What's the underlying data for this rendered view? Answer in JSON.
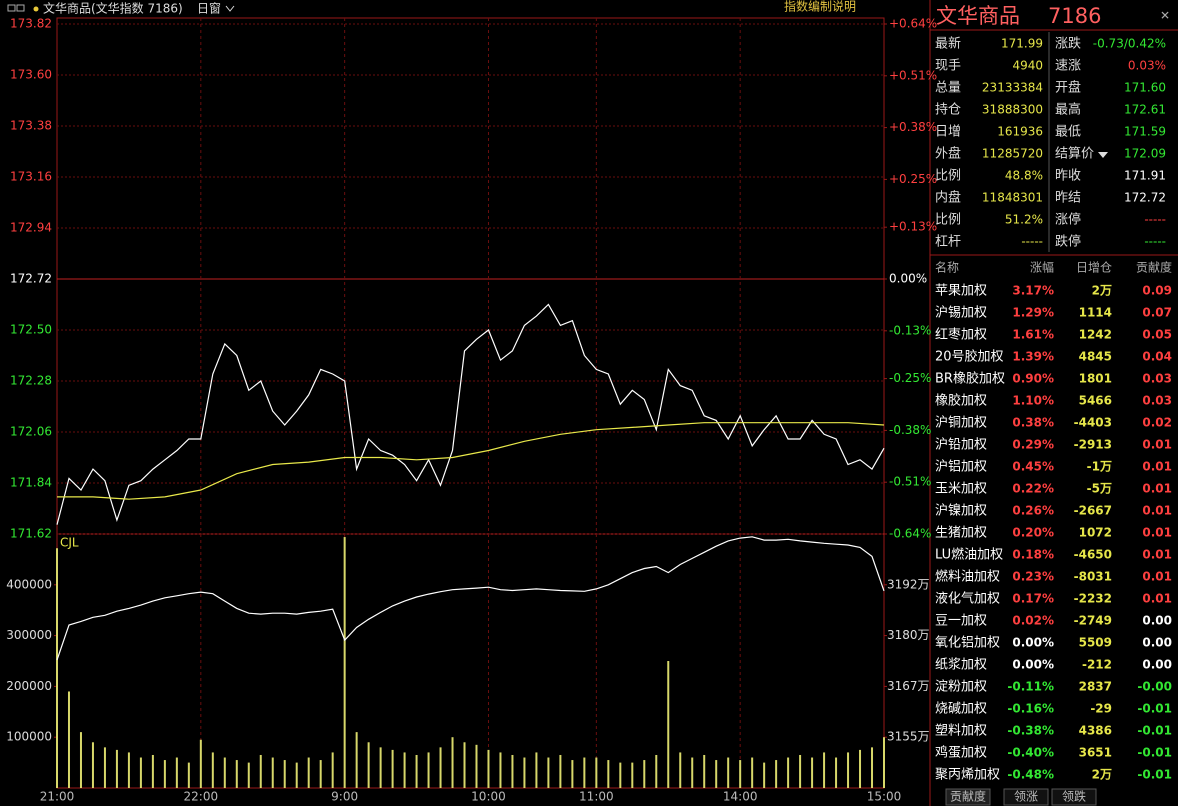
{
  "toolbar": {
    "symbol": "文华商品(文华指数 7186)",
    "period": "日窗",
    "help": "指数编制说明"
  },
  "chart_data": [
    {
      "type": "line",
      "x": [
        0,
        5,
        10,
        15,
        20,
        25,
        30,
        35,
        40,
        45,
        50,
        55,
        60,
        65,
        70,
        75,
        80,
        85,
        90,
        95,
        100,
        105,
        110,
        115,
        120,
        125,
        130,
        135,
        140,
        145,
        150,
        155,
        160,
        165,
        170,
        175,
        180,
        185,
        190,
        195,
        200,
        205,
        210,
        215,
        220,
        225,
        230,
        235,
        240,
        245,
        250,
        255,
        260,
        265,
        270,
        275,
        280,
        285,
        290,
        295,
        300,
        305,
        310,
        315,
        320,
        325,
        330,
        335,
        340,
        345
      ],
      "xlim": [
        0,
        345
      ],
      "ylim": [
        171.62,
        173.82
      ],
      "yticks": [
        171.62,
        171.84,
        172.06,
        172.28,
        {
          "value": 172.5,
          "label": "172.50"
        },
        172.72,
        172.94,
        173.16,
        173.38,
        {
          "value": 173.6,
          "label": "173.60"
        },
        173.82
      ],
      "y2lim": [
        -0.64,
        0.64
      ],
      "y2ticks": [
        {
          "value": -0.64,
          "label": "-0.64%"
        },
        {
          "value": -0.51,
          "label": "-0.51%"
        },
        {
          "value": -0.38,
          "label": "-0.38%"
        },
        {
          "value": -0.25,
          "label": "-0.25%"
        },
        {
          "value": -0.13,
          "label": "-0.13%"
        },
        {
          "value": 0,
          "label": "0.00%"
        },
        {
          "value": 0.13,
          "label": "+0.13%"
        },
        {
          "value": 0.25,
          "label": "+0.25%"
        },
        {
          "value": 0.38,
          "label": "+0.38%"
        },
        {
          "value": 0.51,
          "label": "+0.51%"
        },
        {
          "value": 0.64,
          "label": "+0.64%"
        }
      ],
      "grid": true,
      "series": [
        {
          "color": "#ffffff",
          "values": [
            171.66,
            171.86,
            171.81,
            171.9,
            171.85,
            171.68,
            171.83,
            171.85,
            171.9,
            171.94,
            171.98,
            172.03,
            172.03,
            172.31,
            172.44,
            172.39,
            172.24,
            172.28,
            172.15,
            172.09,
            172.15,
            172.22,
            172.33,
            172.31,
            172.28,
            171.9,
            172.03,
            171.98,
            171.96,
            171.92,
            171.85,
            171.94,
            171.83,
            171.98,
            172.41,
            172.46,
            172.5,
            172.37,
            172.41,
            172.52,
            172.56,
            172.61,
            172.52,
            172.54,
            172.39,
            172.33,
            172.31,
            172.18,
            172.24,
            172.2,
            172.07,
            172.33,
            172.26,
            172.24,
            172.13,
            172.11,
            172.03,
            172.13,
            172.0,
            172.07,
            172.13,
            172.03,
            172.03,
            172.11,
            172.05,
            172.03,
            171.92,
            171.94,
            171.9,
            171.99
          ]
        },
        {
          "color": "#e8e84a",
          "x": [
            0,
            15,
            30,
            45,
            60,
            75,
            90,
            105,
            120,
            135,
            150,
            165,
            180,
            195,
            210,
            225,
            240,
            255,
            270,
            285,
            300,
            315,
            330,
            345
          ],
          "values": [
            171.78,
            171.78,
            171.77,
            171.78,
            171.81,
            171.88,
            171.92,
            171.93,
            171.95,
            171.95,
            171.94,
            171.95,
            171.98,
            172.02,
            172.05,
            172.07,
            172.08,
            172.09,
            172.1,
            172.1,
            172.1,
            172.1,
            172.1,
            172.09
          ]
        }
      ]
    },
    {
      "type": "bar",
      "title": "CJL",
      "x": [
        0,
        5,
        10,
        15,
        20,
        25,
        30,
        35,
        40,
        45,
        50,
        55,
        60,
        65,
        70,
        75,
        80,
        85,
        90,
        95,
        100,
        105,
        110,
        115,
        120,
        125,
        130,
        135,
        140,
        145,
        150,
        155,
        160,
        165,
        170,
        175,
        180,
        185,
        190,
        195,
        200,
        205,
        210,
        215,
        220,
        225,
        230,
        235,
        240,
        245,
        250,
        255,
        260,
        265,
        270,
        275,
        280,
        285,
        290,
        295,
        300,
        305,
        310,
        315,
        320,
        325,
        330,
        335,
        340,
        345
      ],
      "xlim": [
        0,
        345
      ],
      "xticks": [
        {
          "value": 0,
          "label": "21:00"
        },
        {
          "value": 60,
          "label": "22:00"
        },
        {
          "value": 120,
          "label": "9:00"
        },
        {
          "value": 180,
          "label": "10:00"
        },
        {
          "value": 225,
          "label": "11:00"
        },
        {
          "value": 285,
          "label": "14:00"
        },
        {
          "value": 345,
          "label": "15:00"
        }
      ],
      "ylim": [
        0,
        500000
      ],
      "yticks": [
        100000,
        200000,
        300000,
        400000
      ],
      "y2lim": [
        31420000,
        32045000
      ],
      "y2ticks": [
        {
          "value": 31545000,
          "label": "3155万"
        },
        {
          "value": 31670000,
          "label": "3167万"
        },
        {
          "value": 31795000,
          "label": "3180万"
        },
        {
          "value": 31920000,
          "label": "3192万"
        }
      ],
      "series": [
        {
          "type": "bar",
          "color": "#d8d86a",
          "values": [
            472000,
            190000,
            110000,
            90000,
            80000,
            75000,
            70000,
            60000,
            65000,
            55000,
            60000,
            50000,
            95000,
            70000,
            60000,
            55000,
            50000,
            65000,
            60000,
            55000,
            50000,
            60000,
            55000,
            70000,
            494000,
            110000,
            90000,
            80000,
            75000,
            70000,
            65000,
            70000,
            80000,
            100000,
            90000,
            85000,
            75000,
            70000,
            65000,
            60000,
            70000,
            60000,
            65000,
            55000,
            60000,
            60000,
            55000,
            50000,
            50000,
            55000,
            65000,
            250000,
            70000,
            60000,
            65000,
            55000,
            60000,
            55000,
            60000,
            50000,
            55000,
            60000,
            65000,
            60000,
            70000,
            60000,
            70000,
            75000,
            80000,
            100000
          ]
        },
        {
          "type": "line",
          "axis": "y2",
          "color": "#ffffff",
          "values": [
            31735000,
            31821000,
            31830000,
            31840000,
            31845000,
            31855000,
            31862000,
            31870000,
            31880000,
            31888000,
            31893000,
            31898000,
            31902000,
            31898000,
            31880000,
            31862000,
            31850000,
            31848000,
            31850000,
            31850000,
            31848000,
            31852000,
            31855000,
            31860000,
            31784000,
            31815000,
            31835000,
            31852000,
            31868000,
            31880000,
            31890000,
            31897000,
            31903000,
            31908000,
            31910000,
            31912000,
            31914000,
            31908000,
            31906000,
            31908000,
            31910000,
            31908000,
            31906000,
            31905000,
            31904000,
            31910000,
            31920000,
            31935000,
            31950000,
            31960000,
            31965000,
            31950000,
            31970000,
            31985000,
            32000000,
            32015000,
            32028000,
            32035000,
            32038000,
            32030000,
            32030000,
            32032000,
            32028000,
            32025000,
            32022000,
            32020000,
            32018000,
            32012000,
            31990000,
            31905000
          ]
        }
      ]
    }
  ],
  "quote": {
    "title": "文华商品",
    "code": "7186",
    "rows": [
      [
        {
          "label": "最新",
          "value": "171.99",
          "color": "#e6e64a"
        },
        {
          "label": "涨跌",
          "value": "-0.73/0.42%",
          "color": "#33e833"
        }
      ],
      [
        {
          "label": "现手",
          "value": "4940",
          "color": "#e6e64a"
        },
        {
          "label": "速涨",
          "value": "0.03%",
          "color": "#ff4040"
        }
      ],
      [
        {
          "label": "总量",
          "value": "23133384",
          "color": "#e6e64a"
        },
        {
          "label": "开盘",
          "value": "171.60",
          "color": "#33e833"
        }
      ],
      [
        {
          "label": "持仓",
          "value": "31888300",
          "color": "#e6e64a"
        },
        {
          "label": "最高",
          "value": "172.61",
          "color": "#33e833"
        }
      ],
      [
        {
          "label": "日增",
          "value": "161936",
          "color": "#e6e64a"
        },
        {
          "label": "最低",
          "value": "171.59",
          "color": "#33e833"
        }
      ],
      [
        {
          "label": "外盘",
          "value": "11285720",
          "color": "#e6e64a"
        },
        {
          "label": "结算价",
          "value": "172.09",
          "color": "#33e833"
        }
      ],
      [
        {
          "label": "比例",
          "value": "48.8%",
          "color": "#e6e64a"
        },
        {
          "label": "昨收",
          "value": "171.91",
          "color": "#ffffff"
        }
      ],
      [
        {
          "label": "内盘",
          "value": "11848301",
          "color": "#e6e64a"
        },
        {
          "label": "昨结",
          "value": "172.72",
          "color": "#ffffff"
        }
      ],
      [
        {
          "label": "比例",
          "value": "51.2%",
          "color": "#e6e64a"
        },
        {
          "label": "涨停",
          "value": "-----",
          "color": "#ff4040"
        }
      ],
      [
        {
          "label": "杠杆",
          "value": "-----",
          "color": "#e6e64a"
        },
        {
          "label": "跌停",
          "value": "-----",
          "color": "#33e833"
        }
      ]
    ]
  },
  "contrib": {
    "header": [
      "名称",
      "涨幅",
      "日增仓",
      "贡献度"
    ],
    "rows": [
      [
        "苹果加权",
        "3.17%",
        "2万",
        "0.09"
      ],
      [
        "沪锡加权",
        "1.29%",
        "1114",
        "0.07"
      ],
      [
        "红枣加权",
        "1.61%",
        "1242",
        "0.05"
      ],
      [
        "20号胶加权",
        "1.39%",
        "4845",
        "0.04"
      ],
      [
        "BR橡胶加权",
        "0.90%",
        "1801",
        "0.03"
      ],
      [
        "橡胶加权",
        "1.10%",
        "5466",
        "0.03"
      ],
      [
        "沪铜加权",
        "0.38%",
        "-4403",
        "0.02"
      ],
      [
        "沪铅加权",
        "0.29%",
        "-2913",
        "0.01"
      ],
      [
        "沪铝加权",
        "0.45%",
        "-1万",
        "0.01"
      ],
      [
        "玉米加权",
        "0.22%",
        "-5万",
        "0.01"
      ],
      [
        "沪镍加权",
        "0.26%",
        "-2667",
        "0.01"
      ],
      [
        "生猪加权",
        "0.20%",
        "1072",
        "0.01"
      ],
      [
        "LU燃油加权",
        "0.18%",
        "-4650",
        "0.01"
      ],
      [
        "燃料油加权",
        "0.23%",
        "-8031",
        "0.01"
      ],
      [
        "液化气加权",
        "0.17%",
        "-2232",
        "0.01"
      ],
      [
        "豆一加权",
        "0.02%",
        "-2749",
        "0.00"
      ],
      [
        "氧化铝加权",
        "0.00%",
        "5509",
        "0.00"
      ],
      [
        "纸浆加权",
        "0.00%",
        "-212",
        "0.00"
      ],
      [
        "淀粉加权",
        "-0.11%",
        "2837",
        "-0.00"
      ],
      [
        "烧碱加权",
        "-0.16%",
        "-29",
        "-0.01"
      ],
      [
        "塑料加权",
        "-0.38%",
        "4386",
        "-0.01"
      ],
      [
        "鸡蛋加权",
        "-0.40%",
        "3651",
        "-0.01"
      ],
      [
        "聚丙烯加权",
        "-0.48%",
        "2万",
        "-0.01"
      ]
    ]
  },
  "tabs": [
    "贡献度",
    "领涨",
    "领跌"
  ]
}
